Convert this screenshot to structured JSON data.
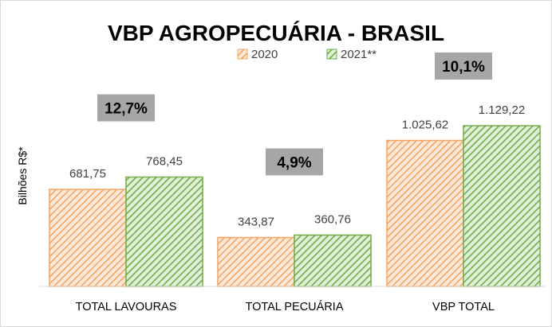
{
  "chart_data": {
    "type": "bar",
    "title": "VBP AGROPECUÁRIA - BRASIL",
    "ylabel": "Bilhões R$*",
    "xlabel": "",
    "categories": [
      "TOTAL LAVOURAS",
      "TOTAL PECUÁRIA",
      "VBP TOTAL"
    ],
    "series": [
      {
        "name": "2020",
        "values": [
          681.75,
          343.87,
          1025.62
        ],
        "labels": [
          "681,75",
          "343,87",
          "1.025,62"
        ],
        "color": "#F4A460"
      },
      {
        "name": "2021**",
        "values": [
          768.45,
          360.76,
          1129.22
        ],
        "labels": [
          "768,45",
          "360,76",
          "1.129,22"
        ],
        "color": "#70AD47"
      }
    ],
    "growth_labels": [
      "12,7%",
      "4,9%",
      "10,1%"
    ],
    "ylim": [
      0,
      1400
    ],
    "grid": false,
    "legend_position": "top"
  }
}
